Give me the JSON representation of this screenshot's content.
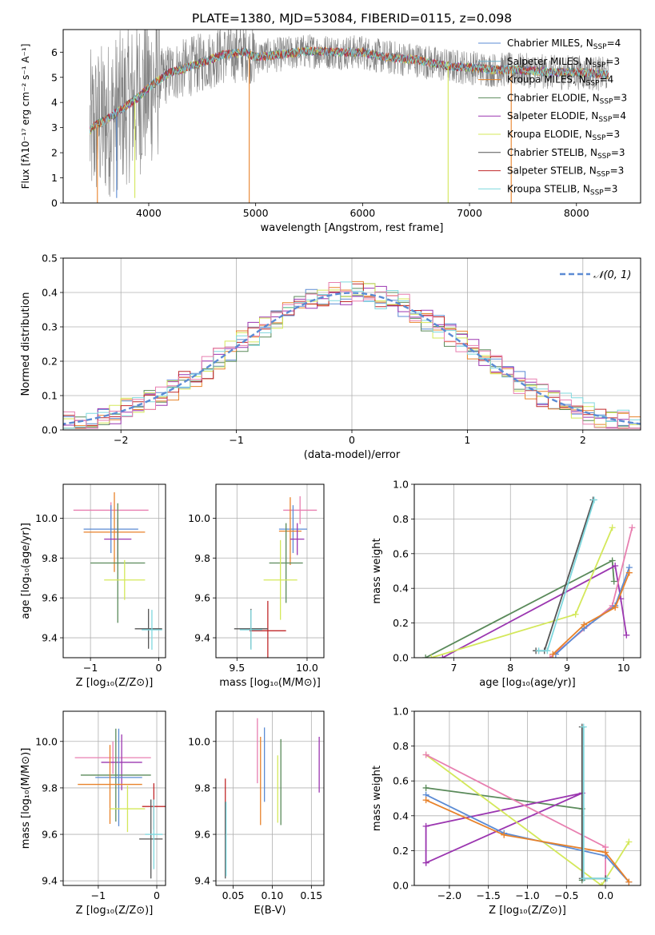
{
  "title": "PLATE=1380, MJD=53084, FIBERID=0115, z=0.098",
  "colors": {
    "chabrier_miles": "#5b8bd4",
    "salpeter_miles": "#6fb0c8",
    "kroupa_miles": "#e8822a",
    "chabrier_elodie": "#5a8a5a",
    "salpeter_elodie": "#9b36b0",
    "kroupa_elodie": "#d4e85a",
    "chabrier_stelib": "#555555",
    "salpeter_stelib": "#c0282a",
    "kroupa_stelib": "#7fd8de",
    "pink": "#e87fb0",
    "data": "#808080",
    "gauss": "#5b8bd4",
    "grid": "#b0b0b0"
  },
  "chart_data": [
    {
      "id": "spectrum",
      "type": "line",
      "xlabel": "wavelength [Angstrom, rest frame]",
      "ylabel": "Flux [fλ10⁻¹⁷ erg cm⁻² s⁻¹ A⁻¹]",
      "xlim": [
        3200,
        8600
      ],
      "ylim": [
        0,
        6.9
      ],
      "xticks": [
        4000,
        5000,
        6000,
        7000,
        8000
      ],
      "yticks": [
        0,
        1,
        2,
        3,
        4,
        5,
        6
      ],
      "grid": false,
      "legend_placement": "right",
      "legend": [
        {
          "label": "Chabrier MILES, N",
          "sub": "SSP",
          "eq": "=4",
          "color": "#5b8bd4"
        },
        {
          "label": "Salpeter MILES, N",
          "sub": "SSP",
          "eq": "=3",
          "color": "#6fb0c8"
        },
        {
          "label": "Kroupa MILES, N",
          "sub": "SSP",
          "eq": "=4",
          "color": "#e8822a"
        },
        {
          "label": "Chabrier ELODIE, N",
          "sub": "SSP",
          "eq": "=3",
          "color": "#5a8a5a"
        },
        {
          "label": "Salpeter ELODIE, N",
          "sub": "SSP",
          "eq": "=4",
          "color": "#9b36b0"
        },
        {
          "label": "Kroupa ELODIE, N",
          "sub": "SSP",
          "eq": "=3",
          "color": "#d4e85a"
        },
        {
          "label": "Chabrier STELIB, N",
          "sub": "SSP",
          "eq": "=3",
          "color": "#555555"
        },
        {
          "label": "Salpeter STELIB, N",
          "sub": "SSP",
          "eq": "=3",
          "color": "#c0282a"
        },
        {
          "label": "Kroupa STELIB, N",
          "sub": "SSP",
          "eq": "=3",
          "color": "#7fd8de"
        }
      ],
      "continuum": {
        "x": [
          3450,
          3500,
          3600,
          3700,
          3800,
          3900,
          4000,
          4100,
          4200,
          4300,
          4400,
          4500,
          4700,
          4900,
          5000,
          5200,
          5500,
          5800,
          6000,
          6200,
          6500,
          6800,
          7000,
          7200,
          7400,
          7600,
          7800,
          8000,
          8200,
          8300
        ],
        "y": [
          2.9,
          3.1,
          3.3,
          3.6,
          3.9,
          4.2,
          4.6,
          4.9,
          5.2,
          5.3,
          5.45,
          5.6,
          5.9,
          6.0,
          5.8,
          5.9,
          6.05,
          6.0,
          6.0,
          5.8,
          5.7,
          5.45,
          5.4,
          5.3,
          5.3,
          5.25,
          5.2,
          5.2,
          5.15,
          5.1
        ]
      },
      "dips": [
        {
          "x": 3520,
          "y": 0,
          "color": "#e8822a"
        },
        {
          "x": 3700,
          "y": 0.2,
          "color": "#5b8bd4"
        },
        {
          "x": 3870,
          "y": 0.2,
          "color": "#d4e85a"
        },
        {
          "x": 4940,
          "y": 0,
          "color": "#e8822a"
        },
        {
          "x": 6800,
          "y": 0,
          "color": "#d4e85a"
        },
        {
          "x": 7390,
          "y": 0,
          "color": "#e8822a"
        }
      ]
    },
    {
      "id": "residuals",
      "type": "line",
      "xlabel": "(data-model)/error",
      "ylabel": "Normed distribution",
      "xlim": [
        -2.5,
        2.5
      ],
      "ylim": [
        0,
        0.5
      ],
      "xticks": [
        -2,
        -1,
        0,
        1,
        2
      ],
      "xtick_labels": [
        "−2",
        "−1",
        "0",
        "1",
        "2"
      ],
      "yticks": [
        0,
        0.1,
        0.2,
        0.3,
        0.4,
        0.5
      ],
      "ytick_labels": [
        "0.0",
        "0.1",
        "0.2",
        "0.3",
        "0.4",
        "0.5"
      ],
      "grid": true,
      "legend_placement": "top-right",
      "gauss_label": "𝒩(0, 1)",
      "bin_width": 0.1,
      "series_colors": [
        "#5b8bd4",
        "#e8822a",
        "#5a8a5a",
        "#9b36b0",
        "#d4e85a",
        "#c0282a",
        "#7fd8de",
        "#e87fb0"
      ]
    },
    {
      "id": "age_vs_Z",
      "type": "scatter",
      "xlabel": "Z [log₁₀(Z/Z⊙)]",
      "ylabel": "age  [log₁₀(age/yr)]",
      "xlim": [
        -1.4,
        0.1
      ],
      "ylim": [
        9.3,
        10.17
      ],
      "xticks": [
        -1,
        0
      ],
      "xtick_labels": [
        "−1",
        "0"
      ],
      "yticks": [
        9.4,
        9.6,
        9.8,
        10.0
      ],
      "ytick_labels": [
        "9.4",
        "9.6",
        "9.8",
        "10.0"
      ],
      "grid": true,
      "points": [
        {
          "x": -0.7,
          "y": 10.04,
          "ex": 0.55,
          "ey": 0.04,
          "color": "#e87fb0"
        },
        {
          "x": -0.65,
          "y": 9.93,
          "ex": 0.45,
          "ey": 0.2,
          "color": "#e8822a"
        },
        {
          "x": -0.7,
          "y": 9.945,
          "ex": 0.4,
          "ey": 0.12,
          "color": "#5b8bd4"
        },
        {
          "x": -0.6,
          "y": 9.895,
          "ex": 0.2,
          "ey": 0.1,
          "color": "#9b36b0"
        },
        {
          "x": -0.6,
          "y": 9.775,
          "ex": 0.4,
          "ey": 0.3,
          "color": "#5a8a5a"
        },
        {
          "x": -0.5,
          "y": 9.69,
          "ex": 0.3,
          "ey": 0.1,
          "color": "#d4e85a"
        },
        {
          "x": -0.15,
          "y": 9.445,
          "ex": 0.2,
          "ey": 0.1,
          "color": "#555555"
        },
        {
          "x": -0.1,
          "y": 9.44,
          "ex": 0.15,
          "ey": 0.1,
          "color": "#7fd8de"
        }
      ]
    },
    {
      "id": "age_vs_mass",
      "type": "scatter",
      "xlabel": "mass [log₁₀(M/M⊙)]",
      "ylabel": "",
      "xlim": [
        9.35,
        10.12
      ],
      "ylim": [
        9.3,
        10.17
      ],
      "xticks": [
        9.5,
        10.0
      ],
      "xtick_labels": [
        "9.5",
        "10.0"
      ],
      "yticks": [
        9.4,
        9.6,
        9.8,
        10.0
      ],
      "ytick_labels": [
        "9.4",
        "9.6",
        "9.8",
        "10.0"
      ],
      "grid": true,
      "points": [
        {
          "x": 9.95,
          "y": 10.04,
          "ex": 0.12,
          "ey": 0.07,
          "color": "#e87fb0"
        },
        {
          "x": 9.9,
          "y": 9.945,
          "ex": 0.1,
          "ey": 0.12,
          "color": "#5b8bd4"
        },
        {
          "x": 9.88,
          "y": 9.935,
          "ex": 0.08,
          "ey": 0.17,
          "color": "#e8822a"
        },
        {
          "x": 9.93,
          "y": 9.895,
          "ex": 0.05,
          "ey": 0.08,
          "color": "#9b36b0"
        },
        {
          "x": 9.85,
          "y": 9.775,
          "ex": 0.12,
          "ey": 0.2,
          "color": "#5a8a5a"
        },
        {
          "x": 9.81,
          "y": 9.69,
          "ex": 0.12,
          "ey": 0.2,
          "color": "#d4e85a"
        },
        {
          "x": 9.72,
          "y": 9.435,
          "ex": 0.13,
          "ey": 0.15,
          "color": "#c0282a"
        },
        {
          "x": 9.6,
          "y": 9.445,
          "ex": 0.12,
          "ey": 0.1,
          "color": "#555555"
        },
        {
          "x": 9.6,
          "y": 9.44,
          "ex": 0.08,
          "ey": 0.1,
          "color": "#7fd8de"
        }
      ]
    },
    {
      "id": "massweight_vs_age",
      "type": "line",
      "xlabel": "age  [log₁₀(age/yr)]",
      "ylabel": "mass weight",
      "xlim": [
        6.3,
        10.3
      ],
      "ylim": [
        0,
        1.0
      ],
      "xticks": [
        7,
        8,
        9,
        10
      ],
      "xtick_labels": [
        "7",
        "8",
        "9",
        "10"
      ],
      "yticks": [
        0,
        0.2,
        0.4,
        0.6,
        0.8,
        1.0
      ],
      "ytick_labels": [
        "0.0",
        "0.2",
        "0.4",
        "0.6",
        "0.8",
        "1.0"
      ],
      "grid": true,
      "series": [
        {
          "color": "#5a8a5a",
          "x": [
            6.5,
            9.8,
            9.83
          ],
          "y": [
            0.0,
            0.56,
            0.44
          ]
        },
        {
          "color": "#9b36b0",
          "x": [
            6.8,
            9.85,
            9.95,
            10.05
          ],
          "y": [
            0.0,
            0.53,
            0.34,
            0.13
          ]
        },
        {
          "color": "#d4e85a",
          "x": [
            6.6,
            9.15,
            9.8
          ],
          "y": [
            0.0,
            0.25,
            0.75
          ]
        },
        {
          "color": "#e87fb0",
          "x": [
            8.7,
            9.8,
            10.15
          ],
          "y": [
            0.0,
            0.3,
            0.75
          ]
        },
        {
          "color": "#5b8bd4",
          "x": [
            8.8,
            9.3,
            9.85,
            10.1
          ],
          "y": [
            0.02,
            0.17,
            0.3,
            0.52
          ]
        },
        {
          "color": "#e8822a",
          "x": [
            8.75,
            9.3,
            9.85,
            10.1
          ],
          "y": [
            0.02,
            0.19,
            0.29,
            0.49
          ]
        },
        {
          "color": "#555555",
          "x": [
            8.45,
            8.6,
            9.46
          ],
          "y": [
            0.04,
            0.04,
            0.91
          ]
        },
        {
          "color": "#7fd8de",
          "x": [
            8.5,
            8.65,
            9.48
          ],
          "y": [
            0.04,
            0.04,
            0.91
          ]
        }
      ]
    },
    {
      "id": "mass_vs_Z",
      "type": "scatter",
      "xlabel": "Z [log₁₀(Z/Z⊙)]",
      "ylabel": "mass [log₁₀(M/M⊙)]",
      "xlim": [
        -1.6,
        0.15
      ],
      "ylim": [
        9.38,
        10.13
      ],
      "xticks": [
        -1,
        0
      ],
      "xtick_labels": [
        "−1",
        "0"
      ],
      "yticks": [
        9.4,
        9.6,
        9.8,
        10.0
      ],
      "ytick_labels": [
        "9.4",
        "9.6",
        "9.8",
        "10.0"
      ],
      "grid": true,
      "points": [
        {
          "x": -0.75,
          "y": 9.93,
          "ex": 0.65,
          "ey": 0.07,
          "color": "#e87fb0"
        },
        {
          "x": -0.6,
          "y": 9.91,
          "ex": 0.35,
          "ey": 0.12,
          "color": "#9b36b0"
        },
        {
          "x": -0.7,
          "y": 9.855,
          "ex": 0.6,
          "ey": 0.2,
          "color": "#5a8a5a"
        },
        {
          "x": -0.65,
          "y": 9.845,
          "ex": 0.4,
          "ey": 0.21,
          "color": "#5b8bd4"
        },
        {
          "x": -0.8,
          "y": 9.815,
          "ex": 0.55,
          "ey": 0.17,
          "color": "#e8822a"
        },
        {
          "x": -0.5,
          "y": 9.71,
          "ex": 0.3,
          "ey": 0.1,
          "color": "#d4e85a"
        },
        {
          "x": -0.05,
          "y": 9.72,
          "ex": 0.2,
          "ey": 0.1,
          "color": "#c0282a"
        },
        {
          "x": -0.1,
          "y": 9.58,
          "ex": 0.2,
          "ey": 0.17,
          "color": "#555555"
        },
        {
          "x": -0.05,
          "y": 9.6,
          "ex": 0.15,
          "ey": 0.15,
          "color": "#7fd8de"
        }
      ]
    },
    {
      "id": "mass_vs_ebv",
      "type": "scatter",
      "xlabel": "E(B-V)",
      "ylabel": "",
      "xlim": [
        0.028,
        0.166
      ],
      "ylim": [
        9.38,
        10.13
      ],
      "xticks": [
        0.05,
        0.1,
        0.15
      ],
      "xtick_labels": [
        "0.05",
        "0.10",
        "0.15"
      ],
      "yticks": [
        9.4,
        9.6,
        9.8,
        10.0
      ],
      "ytick_labels": [
        "9.4",
        "9.6",
        "9.8",
        "10.0"
      ],
      "grid": true,
      "vlines": [
        {
          "x": 0.04,
          "y0": 9.6,
          "y1": 9.84,
          "color": "#c0282a"
        },
        {
          "x": 0.04,
          "y0": 9.41,
          "y1": 9.74,
          "color": "#555555"
        },
        {
          "x": 0.041,
          "y0": 9.42,
          "y1": 9.74,
          "color": "#7fd8de"
        },
        {
          "x": 0.081,
          "y0": 9.82,
          "y1": 10.1,
          "color": "#e87fb0"
        },
        {
          "x": 0.085,
          "y0": 9.64,
          "y1": 10.02,
          "color": "#e8822a"
        },
        {
          "x": 0.09,
          "y0": 9.74,
          "y1": 10.06,
          "color": "#5b8bd4"
        },
        {
          "x": 0.107,
          "y0": 9.65,
          "y1": 9.94,
          "color": "#d4e85a"
        },
        {
          "x": 0.111,
          "y0": 9.64,
          "y1": 10.01,
          "color": "#5a8a5a"
        },
        {
          "x": 0.16,
          "y0": 9.78,
          "y1": 10.02,
          "color": "#9b36b0"
        }
      ]
    },
    {
      "id": "massweight_vs_Z",
      "type": "line",
      "xlabel": "Z [log₁₀(Z/Z⊙)]",
      "ylabel": "mass weight",
      "xlim": [
        -2.45,
        0.45
      ],
      "ylim": [
        0,
        1.0
      ],
      "xticks": [
        -2.0,
        -1.5,
        -1.0,
        -0.5,
        0.0
      ],
      "xtick_labels": [
        "−2.0",
        "−1.5",
        "−1.0",
        "−0.5",
        "0.0"
      ],
      "yticks": [
        0,
        0.2,
        0.4,
        0.6,
        0.8,
        1.0
      ],
      "ytick_labels": [
        "0.0",
        "0.2",
        "0.4",
        "0.6",
        "0.8",
        "1.0"
      ],
      "grid": true,
      "series": [
        {
          "color": "#5a8a5a",
          "x": [
            -2.3,
            -0.3,
            -0.3
          ],
          "y": [
            0.56,
            0.44,
            0.03
          ]
        },
        {
          "color": "#9b36b0",
          "x": [
            -2.3,
            -0.3,
            -2.3,
            -2.3
          ],
          "y": [
            0.13,
            0.53,
            0.34,
            0.13
          ]
        },
        {
          "color": "#d4e85a",
          "x": [
            -2.3,
            -0.05,
            0.3
          ],
          "y": [
            0.75,
            0.0,
            0.25
          ]
        },
        {
          "color": "#e87fb0",
          "x": [
            -2.3,
            0.0,
            0.0
          ],
          "y": [
            0.75,
            0.22,
            0.04
          ]
        },
        {
          "color": "#5b8bd4",
          "x": [
            -2.3,
            -1.3,
            0.0,
            0.3
          ],
          "y": [
            0.52,
            0.3,
            0.17,
            0.02
          ]
        },
        {
          "color": "#e8822a",
          "x": [
            -2.3,
            -1.3,
            0.0,
            0.3
          ],
          "y": [
            0.49,
            0.29,
            0.19,
            0.02
          ]
        },
        {
          "color": "#555555",
          "x": [
            -0.3,
            -0.3,
            0.0
          ],
          "y": [
            0.91,
            0.04,
            0.04
          ]
        },
        {
          "color": "#7fd8de",
          "x": [
            -0.28,
            -0.28,
            0.02
          ],
          "y": [
            0.91,
            0.04,
            0.04
          ]
        }
      ]
    }
  ]
}
